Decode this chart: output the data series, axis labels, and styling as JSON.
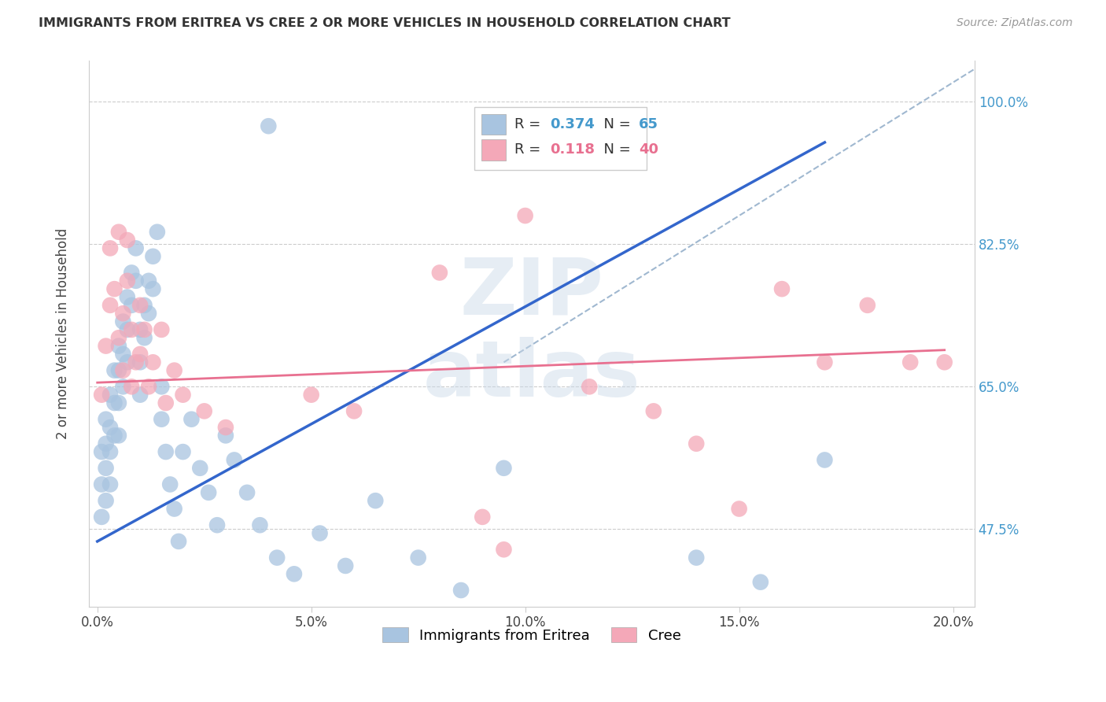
{
  "title": "IMMIGRANTS FROM ERITREA VS CREE 2 OR MORE VEHICLES IN HOUSEHOLD CORRELATION CHART",
  "source": "Source: ZipAtlas.com",
  "xlabel_ticks": [
    "0.0%",
    "5.0%",
    "10.0%",
    "15.0%",
    "20.0%"
  ],
  "xlabel_tick_vals": [
    0.0,
    0.05,
    0.1,
    0.15,
    0.2
  ],
  "ylabel": "2 or more Vehicles in Household",
  "ylabel_ticks": [
    "47.5%",
    "65.0%",
    "82.5%",
    "100.0%"
  ],
  "ylabel_tick_vals": [
    0.475,
    0.65,
    0.825,
    1.0
  ],
  "xlim": [
    -0.002,
    0.205
  ],
  "ylim": [
    0.38,
    1.05
  ],
  "legend_labels": [
    "Immigrants from Eritrea",
    "Cree"
  ],
  "blue_R": 0.374,
  "blue_N": 65,
  "pink_R": 0.118,
  "pink_N": 40,
  "blue_color": "#a8c4e0",
  "pink_color": "#f4a8b8",
  "blue_line_color": "#3366cc",
  "pink_line_color": "#e87090",
  "diagonal_color": "#a0b8d0",
  "blue_line_x": [
    0.0,
    0.17
  ],
  "blue_line_y": [
    0.46,
    0.95
  ],
  "pink_line_x": [
    0.0,
    0.198
  ],
  "pink_line_y": [
    0.655,
    0.695
  ],
  "diag_line_x": [
    0.095,
    0.205
  ],
  "diag_line_y": [
    0.68,
    1.04
  ],
  "blue_scatter_x": [
    0.001,
    0.001,
    0.001,
    0.002,
    0.002,
    0.002,
    0.002,
    0.003,
    0.003,
    0.003,
    0.003,
    0.004,
    0.004,
    0.004,
    0.005,
    0.005,
    0.005,
    0.005,
    0.006,
    0.006,
    0.006,
    0.007,
    0.007,
    0.007,
    0.008,
    0.008,
    0.009,
    0.009,
    0.01,
    0.01,
    0.01,
    0.011,
    0.011,
    0.012,
    0.012,
    0.013,
    0.013,
    0.014,
    0.015,
    0.015,
    0.016,
    0.017,
    0.018,
    0.019,
    0.02,
    0.022,
    0.024,
    0.026,
    0.028,
    0.03,
    0.032,
    0.035,
    0.038,
    0.042,
    0.046,
    0.052,
    0.058,
    0.065,
    0.075,
    0.085,
    0.04,
    0.095,
    0.14,
    0.155,
    0.17
  ],
  "blue_scatter_y": [
    0.57,
    0.53,
    0.49,
    0.61,
    0.58,
    0.55,
    0.51,
    0.64,
    0.6,
    0.57,
    0.53,
    0.67,
    0.63,
    0.59,
    0.7,
    0.67,
    0.63,
    0.59,
    0.73,
    0.69,
    0.65,
    0.76,
    0.72,
    0.68,
    0.79,
    0.75,
    0.82,
    0.78,
    0.72,
    0.68,
    0.64,
    0.75,
    0.71,
    0.78,
    0.74,
    0.81,
    0.77,
    0.84,
    0.65,
    0.61,
    0.57,
    0.53,
    0.5,
    0.46,
    0.57,
    0.61,
    0.55,
    0.52,
    0.48,
    0.59,
    0.56,
    0.52,
    0.48,
    0.44,
    0.42,
    0.47,
    0.43,
    0.51,
    0.44,
    0.4,
    0.97,
    0.55,
    0.44,
    0.41,
    0.56
  ],
  "pink_scatter_x": [
    0.001,
    0.002,
    0.003,
    0.003,
    0.004,
    0.005,
    0.005,
    0.006,
    0.006,
    0.007,
    0.007,
    0.008,
    0.008,
    0.009,
    0.01,
    0.01,
    0.011,
    0.012,
    0.013,
    0.015,
    0.016,
    0.018,
    0.02,
    0.025,
    0.03,
    0.05,
    0.06,
    0.08,
    0.09,
    0.095,
    0.1,
    0.115,
    0.13,
    0.14,
    0.15,
    0.16,
    0.17,
    0.18,
    0.19,
    0.198
  ],
  "pink_scatter_y": [
    0.64,
    0.7,
    0.75,
    0.82,
    0.77,
    0.71,
    0.84,
    0.74,
    0.67,
    0.78,
    0.83,
    0.72,
    0.65,
    0.68,
    0.75,
    0.69,
    0.72,
    0.65,
    0.68,
    0.72,
    0.63,
    0.67,
    0.64,
    0.62,
    0.6,
    0.64,
    0.62,
    0.79,
    0.49,
    0.45,
    0.86,
    0.65,
    0.62,
    0.58,
    0.5,
    0.77,
    0.68,
    0.75,
    0.68,
    0.68
  ]
}
